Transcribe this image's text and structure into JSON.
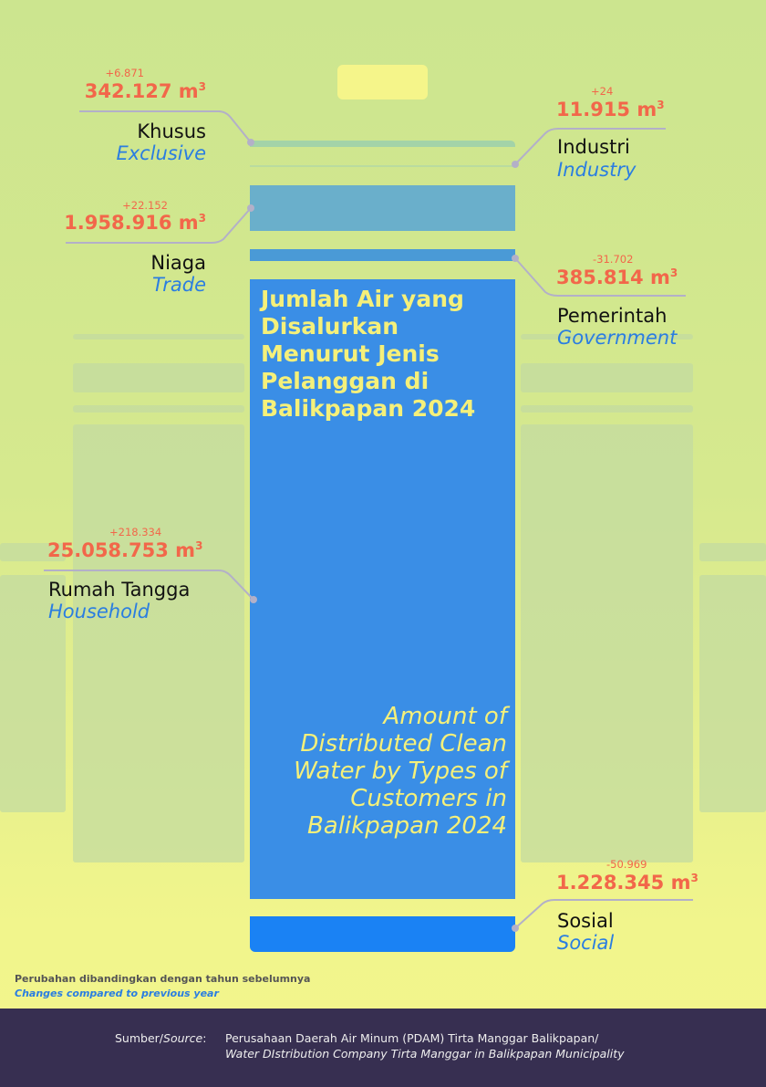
{
  "title": "Jumlah Air yang Disalurkan Menurut Jenis Pelanggan di Balikpapan 2024",
  "subtitle": "Amount of Distributed Clean Water by Types of Customers in Balikpapan 2024",
  "unit": "m³",
  "chart_data": {
    "type": "table",
    "title": "Jumlah Air yang Disalurkan Menurut Jenis Pelanggan di Balikpapan 2024",
    "categories": [
      "Khusus",
      "Industri",
      "Niaga",
      "Pemerintah",
      "Rumah Tangga",
      "Sosial"
    ],
    "categories_en": [
      "Exclusive",
      "Industry",
      "Trade",
      "Government",
      "Household",
      "Social"
    ],
    "values": [
      342127,
      11915,
      1958916,
      385814,
      25058753,
      1228345
    ],
    "changes": [
      6871,
      24,
      22152,
      -31702,
      218334,
      -50969
    ],
    "colors": [
      "#a3d3a8",
      "#b9dba0",
      "#6aafcb",
      "#4a9ad6",
      "#3a8ee6",
      "#1a82f4"
    ]
  },
  "items": {
    "khusus": {
      "label": "Khusus",
      "label_en": "Exclusive",
      "value": "342.127",
      "change": "+6.871"
    },
    "industri": {
      "label": "Industri",
      "label_en": "Industry",
      "value": "11.915",
      "change": "+24"
    },
    "niaga": {
      "label": "Niaga",
      "label_en": "Trade",
      "value": "1.958.916",
      "change": "+22.152"
    },
    "pemerintah": {
      "label": "Pemerintah",
      "label_en": "Government",
      "value": "385.814",
      "change": "-31.702"
    },
    "rumah": {
      "label": "Rumah Tangga",
      "label_en": "Household",
      "value": "25.058.753",
      "change": "+218.334"
    },
    "sosial": {
      "label": "Sosial",
      "label_en": "Social",
      "value": "1.228.345",
      "change": "-50.969"
    }
  },
  "note": {
    "id": "Perubahan dibandingkan dengan tahun sebelumnya",
    "en": "Changes compared to previous year"
  },
  "source": {
    "label_id": "Sumber/",
    "label_en": "Source",
    "colon": ":",
    "line1": "Perusahaan Daerah Air Minum (PDAM) Tirta Manggar Balikpapan/",
    "line2": "Water DIstribution Company Tirta Manggar in Balikpapan Municipality"
  }
}
